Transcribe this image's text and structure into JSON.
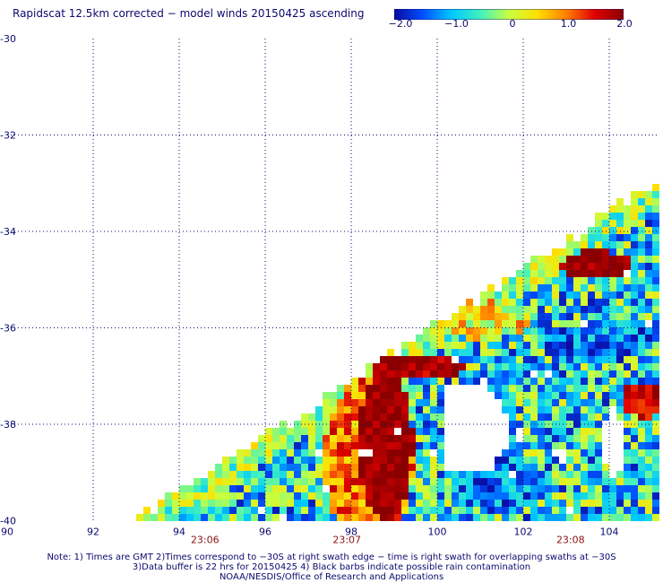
{
  "title": "Rapidscat 12.5km corrected − model winds 20150425 ascending",
  "colorbar": {
    "ticks": [
      "−2.0",
      "−1.0",
      "0",
      "1.0",
      "2.0"
    ],
    "tick_values": [
      -2,
      -1,
      0,
      1,
      2
    ],
    "range": [
      -2.0,
      2.0
    ],
    "stops": [
      "#0a0aa0",
      "#0050ff",
      "#00c8ff",
      "#40f0c0",
      "#c8ff40",
      "#ffe000",
      "#ff8000",
      "#e00000",
      "#8a0000"
    ]
  },
  "chart_data": {
    "type": "heatmap",
    "title": "Rapidscat 12.5km corrected − model winds 20150425 ascending",
    "xlabel": "",
    "ylabel": "",
    "x_ticks": [
      "90",
      "92",
      "94",
      "96",
      "98",
      "100",
      "102",
      "104"
    ],
    "y_ticks": [
      "-30",
      "-32",
      "-34",
      "-36",
      "-38",
      "-40"
    ],
    "x_range": [
      90,
      104.9
    ],
    "y_range": [
      -40,
      -30
    ],
    "grid": true,
    "times": [
      {
        "label": "23:06",
        "lon": 94.6
      },
      {
        "label": "23:07",
        "lon": 97.9
      },
      {
        "label": "23:08",
        "lon": 103.1
      }
    ],
    "regions": [
      {
        "name": "swath-coverage",
        "value_range": [
          -2.0,
          2.0
        ]
      },
      {
        "name": "high-positive-bias",
        "value": 2.0,
        "lon_range": [
          97.9,
          99.7
        ],
        "lat_range": [
          -39.6,
          -36.3
        ]
      },
      {
        "name": "high-positive-bias-east",
        "value": 2.0,
        "lon_range": [
          102.8,
          104.2
        ],
        "lat_range": [
          -35.1,
          -34.3
        ]
      },
      {
        "name": "no-data-hole",
        "lon_range": [
          100.0,
          101.7
        ],
        "lat_range": [
          -38.9,
          -37.1
        ]
      }
    ]
  },
  "notes": {
    "line1": "Note: 1) Times are GMT 2)Times correspond to −30S at right swath edge − time is right swath for overlapping swaths at −30S",
    "line2": "3)Data buffer is 22 hrs for 20150425 4) Black barbs indicate possible rain contamination",
    "line3": "NOAA/NESDIS/Office of Research and Applications"
  }
}
